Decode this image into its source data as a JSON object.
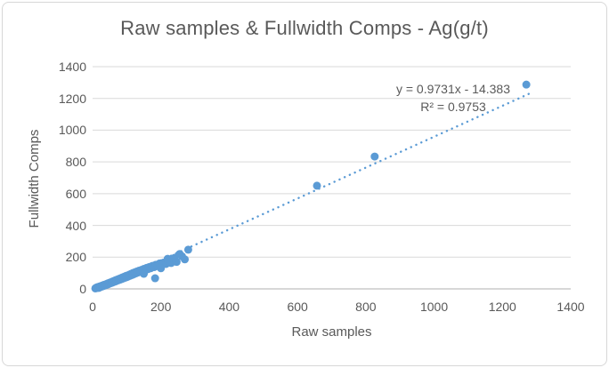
{
  "title": "Raw samples & Fullwidth Comps - Ag(g/t)",
  "annotation": {
    "equation": "y = 0.9731x - 14.383",
    "r_squared": "R² = 0.9753"
  },
  "axes": {
    "x_label": "Raw samples",
    "y_label": "Fullwidth Comps"
  },
  "colors": {
    "marker": "#5b9bd5",
    "trendline": "#5b9bd5",
    "gridline": "#d9d9d9",
    "axis_line": "#bfbfbf",
    "text": "#595959",
    "border": "#d7d7d7",
    "background": "#ffffff"
  },
  "chart_data": {
    "type": "scatter",
    "title": "Raw samples & Fullwidth Comps - Ag(g/t)",
    "xlabel": "Raw samples",
    "ylabel": "Fullwidth Comps",
    "xlim": [
      0,
      1400
    ],
    "ylim": [
      0,
      1400
    ],
    "x_ticks": [
      0,
      200,
      400,
      600,
      800,
      1000,
      1200,
      1400
    ],
    "y_ticks": [
      0,
      200,
      400,
      600,
      800,
      1000,
      1200,
      1400
    ],
    "grid": "horizontal",
    "legend": null,
    "trendline": {
      "slope": 0.9731,
      "intercept": -14.383,
      "r2": 0.9753,
      "style": "dotted",
      "x_range": [
        20,
        1285
      ]
    },
    "points": [
      [
        8,
        3
      ],
      [
        10,
        7
      ],
      [
        12,
        5
      ],
      [
        13,
        10
      ],
      [
        15,
        8
      ],
      [
        16,
        12
      ],
      [
        18,
        6
      ],
      [
        19,
        14
      ],
      [
        21,
        10
      ],
      [
        22,
        16
      ],
      [
        24,
        12
      ],
      [
        25,
        18
      ],
      [
        27,
        15
      ],
      [
        28,
        21
      ],
      [
        30,
        17
      ],
      [
        31,
        23
      ],
      [
        33,
        19
      ],
      [
        34,
        26
      ],
      [
        36,
        22
      ],
      [
        38,
        28
      ],
      [
        39,
        24
      ],
      [
        41,
        31
      ],
      [
        43,
        27
      ],
      [
        44,
        34
      ],
      [
        46,
        30
      ],
      [
        48,
        37
      ],
      [
        49,
        33
      ],
      [
        51,
        40
      ],
      [
        53,
        36
      ],
      [
        55,
        43
      ],
      [
        57,
        39
      ],
      [
        58,
        46
      ],
      [
        60,
        42
      ],
      [
        62,
        50
      ],
      [
        64,
        45
      ],
      [
        66,
        53
      ],
      [
        68,
        48
      ],
      [
        70,
        57
      ],
      [
        72,
        52
      ],
      [
        74,
        60
      ],
      [
        76,
        55
      ],
      [
        78,
        64
      ],
      [
        80,
        58
      ],
      [
        83,
        68
      ],
      [
        85,
        62
      ],
      [
        87,
        72
      ],
      [
        90,
        66
      ],
      [
        92,
        76
      ],
      [
        95,
        70
      ],
      [
        97,
        81
      ],
      [
        100,
        74
      ],
      [
        102,
        85
      ],
      [
        105,
        79
      ],
      [
        108,
        90
      ],
      [
        110,
        83
      ],
      [
        113,
        95
      ],
      [
        116,
        88
      ],
      [
        118,
        100
      ],
      [
        121,
        93
      ],
      [
        124,
        105
      ],
      [
        127,
        98
      ],
      [
        130,
        110
      ],
      [
        133,
        103
      ],
      [
        136,
        115
      ],
      [
        140,
        108
      ],
      [
        143,
        120
      ],
      [
        147,
        113
      ],
      [
        150,
        126
      ],
      [
        154,
        118
      ],
      [
        158,
        132
      ],
      [
        162,
        124
      ],
      [
        166,
        138
      ],
      [
        170,
        130
      ],
      [
        175,
        145
      ],
      [
        180,
        137
      ],
      [
        185,
        152
      ],
      [
        190,
        144
      ],
      [
        196,
        160
      ],
      [
        202,
        150
      ],
      [
        208,
        166
      ],
      [
        215,
        157
      ],
      [
        222,
        174
      ],
      [
        230,
        163
      ],
      [
        238,
        181
      ],
      [
        246,
        170
      ],
      [
        150,
        95
      ],
      [
        183,
        67
      ],
      [
        200,
        130
      ],
      [
        220,
        190
      ],
      [
        240,
        196
      ],
      [
        255,
        220
      ],
      [
        262,
        205
      ],
      [
        270,
        186
      ],
      [
        280,
        247
      ],
      [
        657,
        650
      ],
      [
        826,
        834
      ],
      [
        1270,
        1287
      ]
    ]
  }
}
